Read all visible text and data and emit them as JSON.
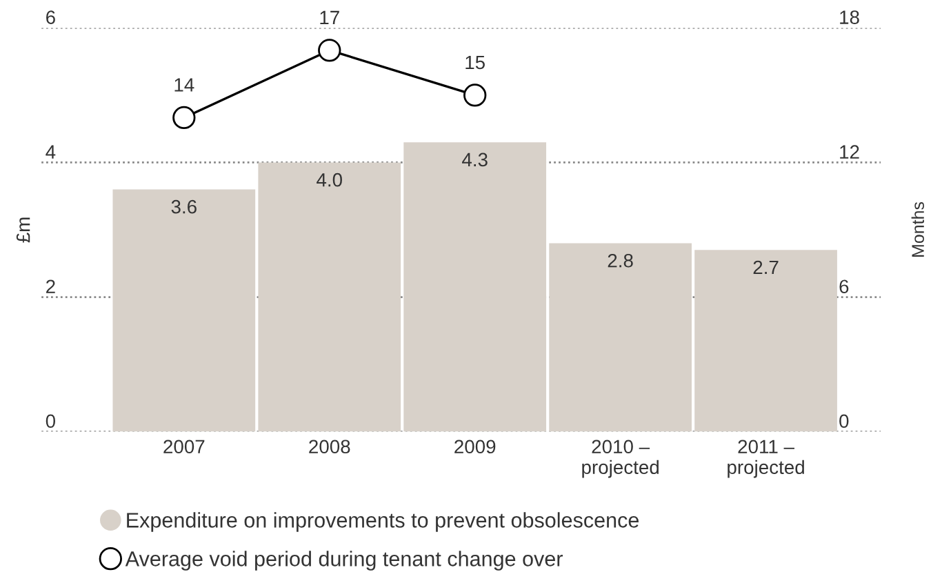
{
  "chart_data": {
    "type": "bar",
    "ylabel": "£m",
    "y2label": "Months",
    "categories": [
      "2007",
      "2008",
      "2009",
      "2010 –\nprojected",
      "2011 –\nprojected"
    ],
    "series": [
      {
        "name": "Expenditure on improvements to prevent obsolescence",
        "color": "#d8d1c9",
        "values": [
          3.6,
          4.0,
          4.3,
          2.8,
          2.7
        ],
        "value_labels": [
          "3.6",
          "4.0",
          "4.3",
          "2.8",
          "2.7"
        ]
      },
      {
        "name": "Average void period during tenant change over",
        "type": "line",
        "axis": "y2",
        "color": "#000000",
        "marker": "circle",
        "values": [
          14,
          17,
          15,
          null,
          null
        ]
      }
    ],
    "ylim": [
      0,
      6
    ],
    "yticks": [
      0,
      2,
      4,
      6
    ],
    "y2lim": [
      0,
      18
    ],
    "y2ticks": [
      0,
      6,
      12,
      18
    ],
    "grid": "y",
    "legend": "bottom",
    "data_labels": true
  }
}
